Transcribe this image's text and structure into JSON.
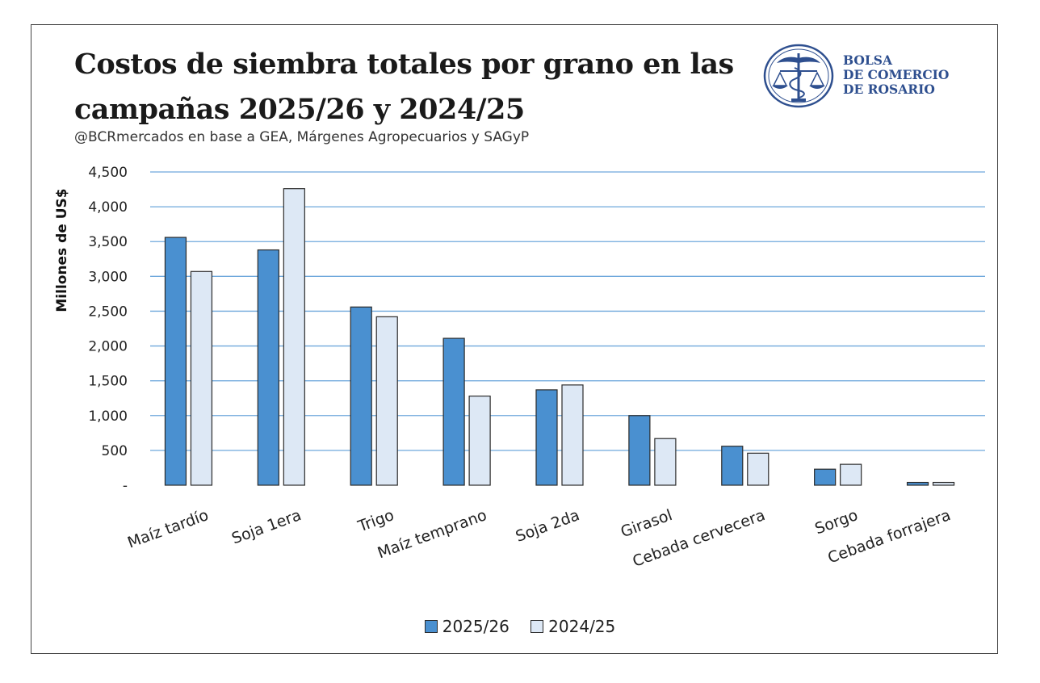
{
  "title": "Costos de siembra totales por grano en las campañas 2025/26 y 2024/25",
  "subtitle": "@BCRmercados en base a GEA, Márgenes Agropecuarios y SAGyP",
  "logo": {
    "line1": "BOLSA",
    "line2": "DE COMERCIO",
    "line3": "DE ROSARIO",
    "icon": "scales-caduceus-emblem-icon"
  },
  "colors": {
    "series1": "#4a90d0",
    "series2": "#dde8f5",
    "grid": "#6fa8dc",
    "logo": "#2e4f8f"
  },
  "chart_data": {
    "type": "bar",
    "title": "Costos de siembra totales por grano en las campañas 2025/26 y 2024/25",
    "ylabel": "Millones de US$",
    "xlabel": "",
    "ylim": [
      0,
      4500
    ],
    "yticks": [
      0,
      500,
      1000,
      1500,
      2000,
      2500,
      3000,
      3500,
      4000,
      4500
    ],
    "ytick_labels": [
      "-",
      "500",
      "1,000",
      "1,500",
      "2,000",
      "2,500",
      "3,000",
      "3,500",
      "4,000",
      "4,500"
    ],
    "grid": true,
    "legend_position": "bottom",
    "categories": [
      "Maíz tardío",
      "Soja 1era",
      "Trigo",
      "Maíz temprano",
      "Soja 2da",
      "Girasol",
      "Cebada cervecera",
      "Sorgo",
      "Cebada forrajera"
    ],
    "series": [
      {
        "name": "2025/26",
        "values": [
          3560,
          3380,
          2560,
          2110,
          1370,
          1000,
          560,
          230,
          40
        ]
      },
      {
        "name": "2024/25",
        "values": [
          3070,
          4260,
          2420,
          1280,
          1440,
          670,
          460,
          300,
          40
        ]
      }
    ]
  }
}
